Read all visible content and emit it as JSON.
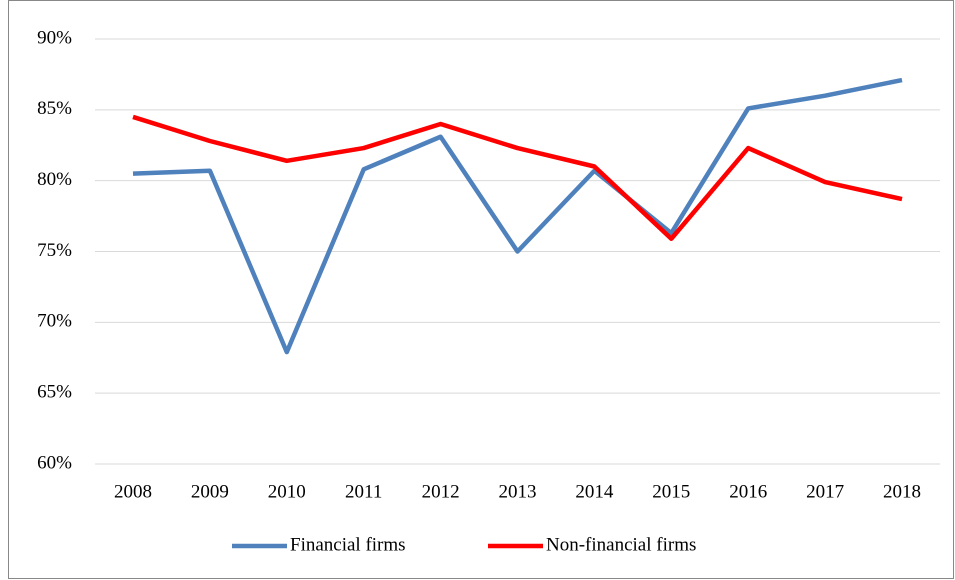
{
  "chart_data": {
    "type": "line",
    "categories": [
      "2008",
      "2009",
      "2010",
      "2011",
      "2012",
      "2013",
      "2014",
      "2015",
      "2016",
      "2017",
      "2018"
    ],
    "series": [
      {
        "name": "Financial firms",
        "color": "#4f81bd",
        "values": [
          80.5,
          80.7,
          67.9,
          80.8,
          83.1,
          75.0,
          80.7,
          76.3,
          85.1,
          86.0,
          87.1
        ]
      },
      {
        "name": "Non-financial firms",
        "color": "#ff0000",
        "values": [
          84.5,
          82.8,
          81.4,
          82.3,
          84.0,
          82.3,
          81.0,
          75.9,
          82.3,
          79.9,
          78.7
        ]
      }
    ],
    "ylim": [
      60,
      90
    ],
    "yticks": [
      {
        "value": 60,
        "label": "60%"
      },
      {
        "value": 65,
        "label": "65%"
      },
      {
        "value": 70,
        "label": "70%"
      },
      {
        "value": 75,
        "label": "75%"
      },
      {
        "value": 80,
        "label": "80%"
      },
      {
        "value": 85,
        "label": "85%"
      },
      {
        "value": 90,
        "label": "90%"
      }
    ],
    "grid": true,
    "legend": "bottom"
  }
}
